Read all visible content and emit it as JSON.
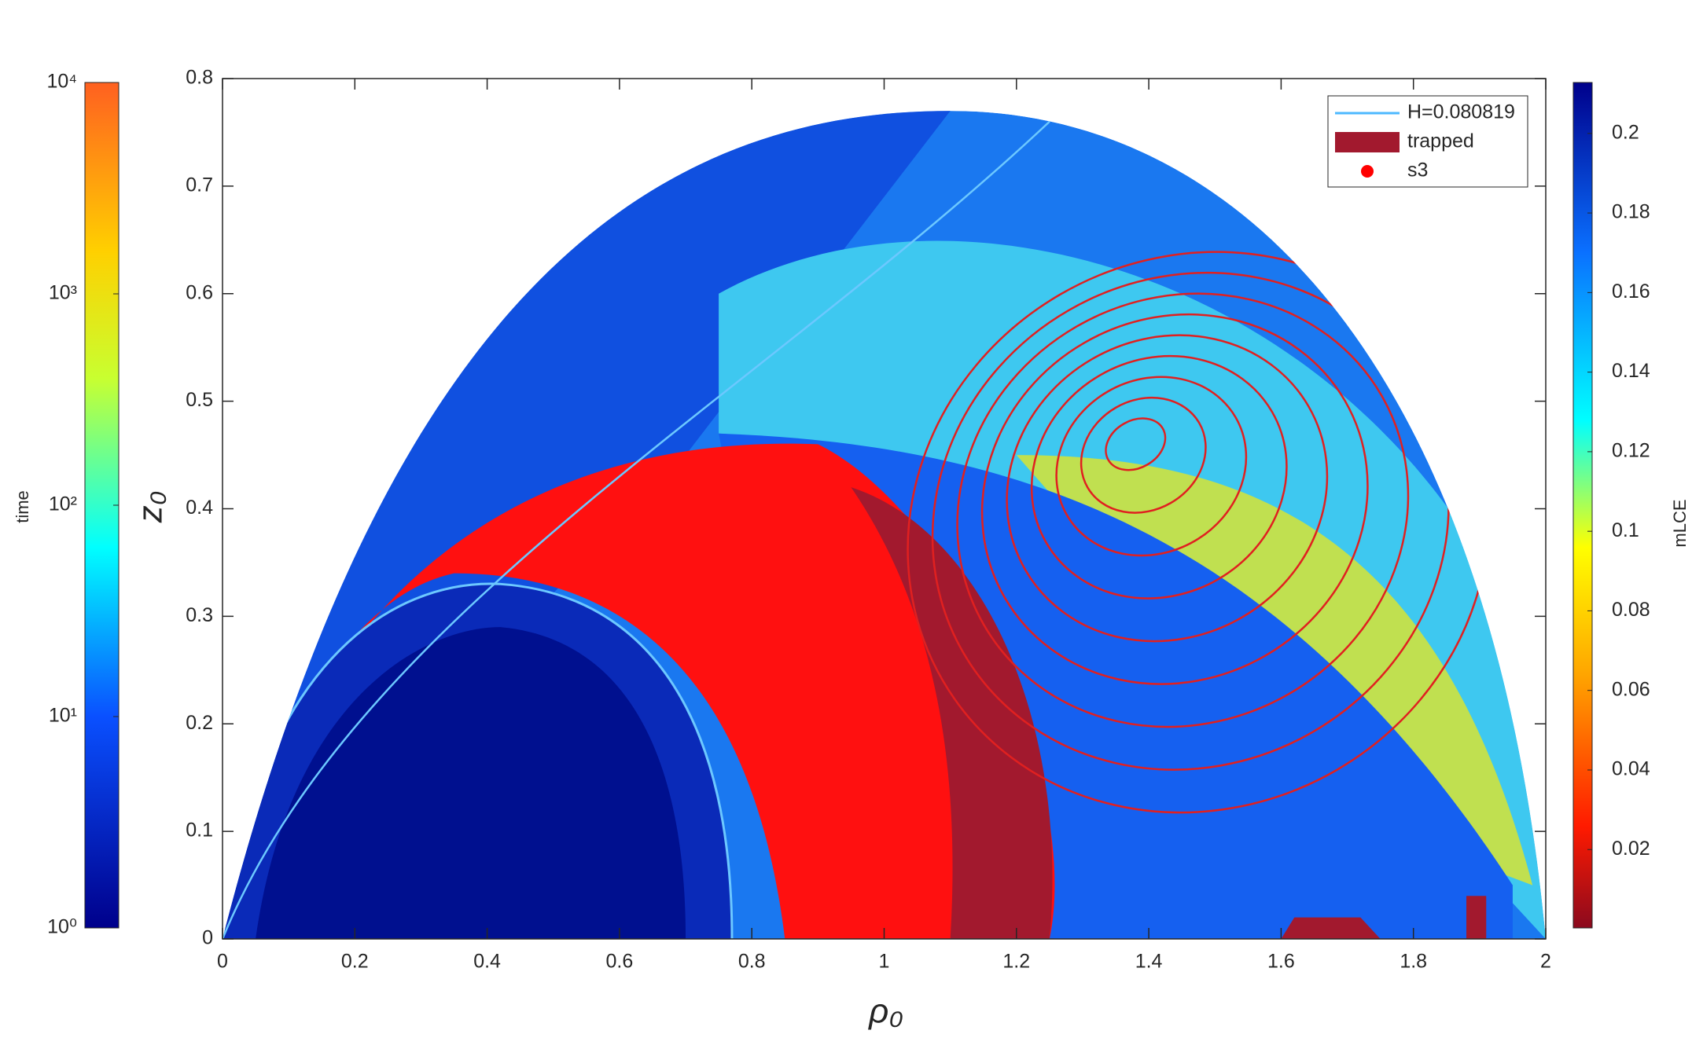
{
  "chart_data": {
    "type": "heatmap",
    "xlabel": "ρ₀",
    "ylabel": "z₀",
    "xlim": [
      0,
      2
    ],
    "xticks": [
      0,
      0.2,
      0.4,
      0.6,
      0.8,
      1,
      1.2,
      1.4,
      1.6,
      1.8,
      2
    ],
    "ylim": [
      0,
      0.8
    ],
    "yticks": [
      0,
      0.1,
      0.2,
      0.3,
      0.4,
      0.5,
      0.6,
      0.7,
      0.8
    ],
    "series": [
      {
        "name": "H=0.080819",
        "color": "#4db8ff"
      },
      {
        "name": "trapped",
        "color": "#a2192e"
      },
      {
        "name": "s3",
        "color": "#ff0000"
      }
    ],
    "colorbar": {
      "label": "mLCE",
      "lim": [
        0.0003,
        0.2128
      ],
      "ticks": [
        0.02,
        0.04,
        0.06,
        0.08,
        0.1,
        0.12,
        0.14,
        0.16,
        0.18,
        0.2
      ]
    },
    "colorbar2": {
      "label": "time",
      "log_scale": true,
      "lim": [
        1,
        10000
      ],
      "ticks": [
        {
          "value": 1,
          "label": "10⁰"
        },
        {
          "value": 10,
          "label": "10¹"
        },
        {
          "value": 100,
          "label": "10²"
        },
        {
          "value": 1000,
          "label": "10³"
        },
        {
          "value": 10000,
          "label": "10⁴"
        }
      ]
    }
  }
}
